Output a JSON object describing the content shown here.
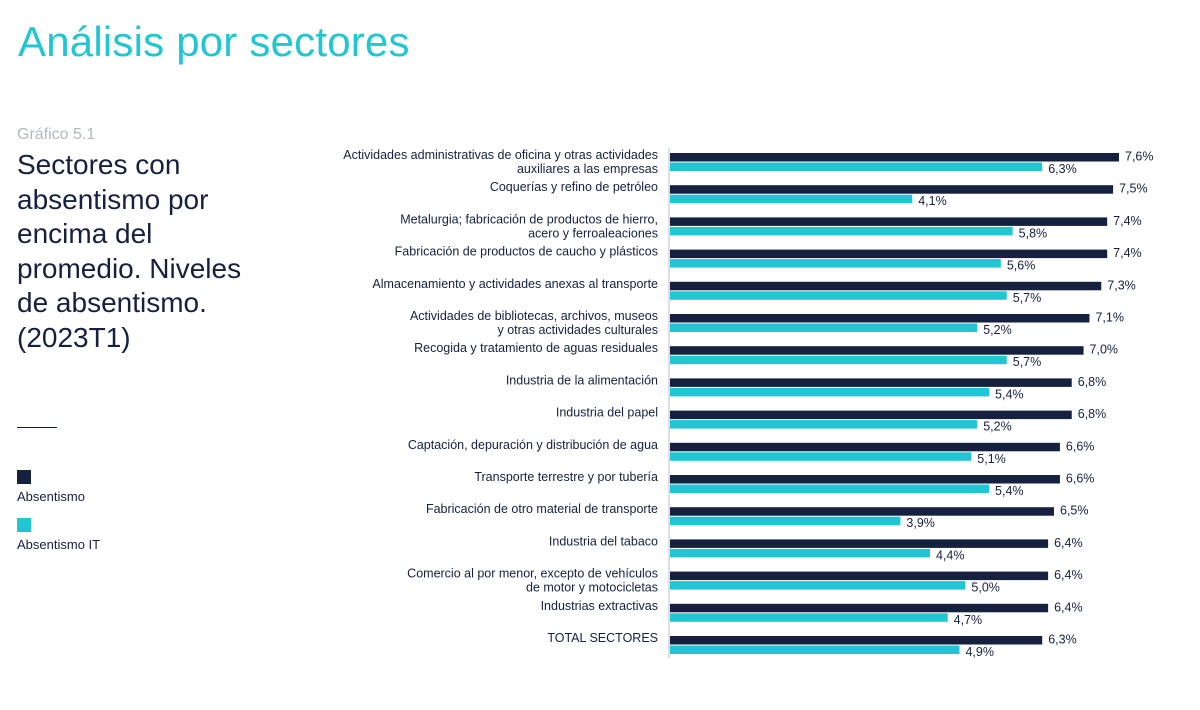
{
  "page_title": "Análisis por sectores",
  "figure_label": "Gráfico 5.1",
  "figure_title": "Sectores con absentismo por encima del promedio. Niveles de absentismo. (2023T1)",
  "colors": {
    "accent": "#22c6d2",
    "dark": "#16203f"
  },
  "chart_data": {
    "type": "bar",
    "orientation": "horizontal",
    "categories": [
      [
        "Actividades administrativas de oficina y otras actividades",
        "auxiliares a las empresas"
      ],
      [
        "Coquerías y refino de petróleo"
      ],
      [
        "Metalurgia; fabricación de productos de hierro,",
        "acero y ferroaleaciones"
      ],
      [
        "Fabricación de productos de caucho y plásticos"
      ],
      [
        "Almacenamiento y actividades anexas al transporte"
      ],
      [
        "Actividades de bibliotecas, archivos, museos",
        "y otras actividades culturales"
      ],
      [
        "Recogida y tratamiento de aguas residuales"
      ],
      [
        "Industria de la alimentación"
      ],
      [
        "Industria del papel"
      ],
      [
        "Captación, depuración y distribución de agua"
      ],
      [
        "Transporte terrestre y por tubería"
      ],
      [
        "Fabricación de otro material de transporte"
      ],
      [
        "Industria del tabaco"
      ],
      [
        "Comercio al por menor, excepto de vehículos",
        "de motor y motocicletas"
      ],
      [
        "Industrias extractivas"
      ],
      [
        "TOTAL SECTORES"
      ]
    ],
    "series": [
      {
        "name": "Absentismo",
        "color": "#16203f",
        "values": [
          7.6,
          7.5,
          7.4,
          7.4,
          7.3,
          7.1,
          7.0,
          6.8,
          6.8,
          6.6,
          6.6,
          6.5,
          6.4,
          6.4,
          6.4,
          6.3
        ],
        "labels": [
          "7,6%",
          "7,5%",
          "7,4%",
          "7,4%",
          "7,3%",
          "7,1%",
          "7,0%",
          "6,8%",
          "6,8%",
          "6,6%",
          "6,6%",
          "6,5%",
          "6,4%",
          "6,4%",
          "6,4%",
          "6,3%"
        ]
      },
      {
        "name": "Absentismo IT",
        "color": "#22c6d2",
        "values": [
          6.3,
          4.1,
          5.8,
          5.6,
          5.7,
          5.2,
          5.7,
          5.4,
          5.2,
          5.1,
          5.4,
          3.9,
          4.4,
          5.0,
          4.7,
          4.9
        ],
        "labels": [
          "6,3%",
          "4,1%",
          "5,8%",
          "5,6%",
          "5,7%",
          "5,2%",
          "5,7%",
          "5,4%",
          "5,2%",
          "5,1%",
          "5,4%",
          "3,9%",
          "4,4%",
          "5,0%",
          "4,7%",
          "4,9%"
        ]
      }
    ],
    "unit": "%",
    "xlim": [
      0,
      7.6
    ],
    "grid": false,
    "legend": "left"
  }
}
